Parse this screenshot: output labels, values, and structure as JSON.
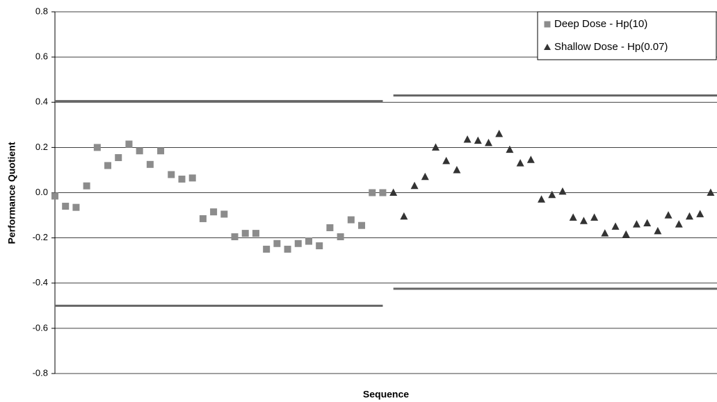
{
  "chart_data": {
    "type": "scatter",
    "xlabel": "Sequence",
    "ylabel": "Performance Quotient",
    "xlim": [
      1,
      63.6
    ],
    "ylim": [
      -0.8,
      0.8
    ],
    "yticks": [
      -0.8,
      -0.6,
      -0.4,
      -0.2,
      {
        "value": 0,
        "label": "0.0"
      },
      0.2,
      0.4,
      0.6,
      0.8
    ],
    "grid": true,
    "legend": "upper right",
    "series": [
      {
        "name": "Deep Dose - Hp(10)",
        "marker": "square",
        "color": "#8c8c8c",
        "upper_limit": 0.405,
        "lower_limit": -0.5,
        "x": [
          1,
          2,
          3,
          4,
          5,
          6,
          7,
          8,
          9,
          10,
          11,
          12,
          13,
          14,
          15,
          16,
          17,
          18,
          19,
          20,
          21,
          22,
          23,
          24,
          25,
          26,
          27,
          28,
          29,
          30,
          31,
          32
        ],
        "values": [
          -0.015,
          -0.06,
          -0.065,
          0.03,
          0.2,
          0.12,
          0.155,
          0.215,
          0.185,
          0.125,
          0.185,
          0.08,
          0.06,
          0.065,
          -0.115,
          -0.085,
          -0.095,
          -0.195,
          -0.18,
          -0.18,
          -0.25,
          -0.225,
          -0.25,
          -0.225,
          -0.215,
          -0.235,
          -0.155,
          -0.195,
          -0.12,
          -0.145,
          0.0,
          0.0
        ]
      },
      {
        "name": "Shallow Dose - Hp(0.07)",
        "marker": "triangle",
        "color": "#333333",
        "upper_limit": 0.43,
        "lower_limit": -0.425,
        "x": [
          33,
          34,
          35,
          36,
          37,
          38,
          39,
          40,
          41,
          42,
          43,
          44,
          45,
          46,
          47,
          48,
          49,
          50,
          51,
          52,
          53,
          54,
          55,
          56,
          57,
          58,
          59,
          60,
          61,
          62,
          63
        ],
        "values": [
          0.0,
          -0.105,
          0.03,
          0.07,
          0.2,
          0.14,
          0.1,
          0.235,
          0.23,
          0.22,
          0.26,
          0.19,
          0.13,
          0.145,
          -0.03,
          -0.01,
          0.005,
          -0.11,
          -0.125,
          -0.11,
          -0.18,
          -0.15,
          -0.185,
          -0.14,
          -0.135,
          -0.17,
          -0.1,
          -0.14,
          -0.105,
          -0.095,
          0.0
        ]
      }
    ]
  }
}
